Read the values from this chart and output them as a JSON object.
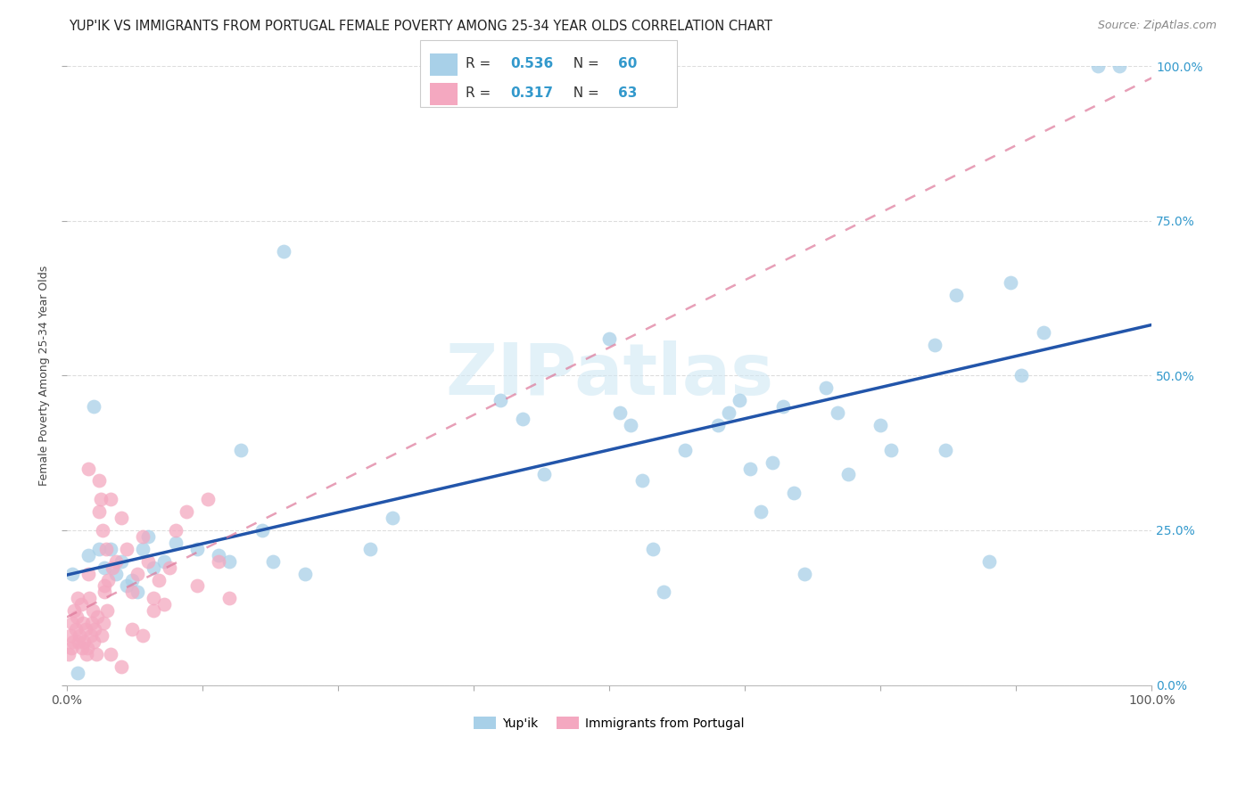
{
  "title": "YUP'IK VS IMMIGRANTS FROM PORTUGAL FEMALE POVERTY AMONG 25-34 YEAR OLDS CORRELATION CHART",
  "source": "Source: ZipAtlas.com",
  "ylabel": "Female Poverty Among 25-34 Year Olds",
  "legend1_label": "Yup'ik",
  "legend2_label": "Immigrants from Portugal",
  "R1": 0.536,
  "N1": 60,
  "R2": 0.317,
  "N2": 63,
  "color_blue": "#a8d0e8",
  "color_pink": "#f4a8c0",
  "color_blue_text": "#3399cc",
  "line_blue": "#2255aa",
  "line_pink": "#dd7799",
  "watermark_color": "#d0e8f4",
  "background_color": "#ffffff",
  "grid_color": "#dddddd",
  "yupik_points": [
    [
      0.5,
      18.0
    ],
    [
      1.0,
      2.0
    ],
    [
      2.0,
      21.0
    ],
    [
      2.5,
      45.0
    ],
    [
      3.0,
      22.0
    ],
    [
      3.5,
      19.0
    ],
    [
      4.0,
      22.0
    ],
    [
      4.5,
      18.0
    ],
    [
      5.0,
      20.0
    ],
    [
      5.5,
      16.0
    ],
    [
      6.0,
      17.0
    ],
    [
      6.5,
      15.0
    ],
    [
      7.0,
      22.0
    ],
    [
      7.5,
      24.0
    ],
    [
      8.0,
      19.0
    ],
    [
      9.0,
      20.0
    ],
    [
      10.0,
      23.0
    ],
    [
      12.0,
      22.0
    ],
    [
      14.0,
      21.0
    ],
    [
      15.0,
      20.0
    ],
    [
      16.0,
      38.0
    ],
    [
      18.0,
      25.0
    ],
    [
      19.0,
      20.0
    ],
    [
      20.0,
      70.0
    ],
    [
      22.0,
      18.0
    ],
    [
      28.0,
      22.0
    ],
    [
      30.0,
      27.0
    ],
    [
      40.0,
      46.0
    ],
    [
      42.0,
      43.0
    ],
    [
      44.0,
      34.0
    ],
    [
      50.0,
      56.0
    ],
    [
      51.0,
      44.0
    ],
    [
      52.0,
      42.0
    ],
    [
      53.0,
      33.0
    ],
    [
      54.0,
      22.0
    ],
    [
      55.0,
      15.0
    ],
    [
      57.0,
      38.0
    ],
    [
      60.0,
      42.0
    ],
    [
      61.0,
      44.0
    ],
    [
      62.0,
      46.0
    ],
    [
      63.0,
      35.0
    ],
    [
      64.0,
      28.0
    ],
    [
      65.0,
      36.0
    ],
    [
      66.0,
      45.0
    ],
    [
      67.0,
      31.0
    ],
    [
      68.0,
      18.0
    ],
    [
      70.0,
      48.0
    ],
    [
      71.0,
      44.0
    ],
    [
      72.0,
      34.0
    ],
    [
      75.0,
      42.0
    ],
    [
      76.0,
      38.0
    ],
    [
      80.0,
      55.0
    ],
    [
      81.0,
      38.0
    ],
    [
      82.0,
      63.0
    ],
    [
      85.0,
      20.0
    ],
    [
      87.0,
      65.0
    ],
    [
      88.0,
      50.0
    ],
    [
      90.0,
      57.0
    ],
    [
      95.0,
      100.0
    ],
    [
      97.0,
      100.0
    ]
  ],
  "portugal_points": [
    [
      0.2,
      5.0
    ],
    [
      0.3,
      8.0
    ],
    [
      0.4,
      6.0
    ],
    [
      0.5,
      10.0
    ],
    [
      0.6,
      7.0
    ],
    [
      0.7,
      12.0
    ],
    [
      0.8,
      9.0
    ],
    [
      0.9,
      11.0
    ],
    [
      1.0,
      14.0
    ],
    [
      1.1,
      7.0
    ],
    [
      1.2,
      8.0
    ],
    [
      1.3,
      13.0
    ],
    [
      1.4,
      6.0
    ],
    [
      1.5,
      10.0
    ],
    [
      1.6,
      7.0
    ],
    [
      1.7,
      9.0
    ],
    [
      1.8,
      5.0
    ],
    [
      1.9,
      6.0
    ],
    [
      2.0,
      18.0
    ],
    [
      2.1,
      14.0
    ],
    [
      2.2,
      8.0
    ],
    [
      2.3,
      10.0
    ],
    [
      2.4,
      12.0
    ],
    [
      2.5,
      7.0
    ],
    [
      2.6,
      9.0
    ],
    [
      2.7,
      5.0
    ],
    [
      2.8,
      11.0
    ],
    [
      3.0,
      33.0
    ],
    [
      3.1,
      30.0
    ],
    [
      3.2,
      8.0
    ],
    [
      3.3,
      25.0
    ],
    [
      3.4,
      10.0
    ],
    [
      3.5,
      15.0
    ],
    [
      3.6,
      22.0
    ],
    [
      3.7,
      12.0
    ],
    [
      3.8,
      17.0
    ],
    [
      4.0,
      30.0
    ],
    [
      4.2,
      19.0
    ],
    [
      4.5,
      20.0
    ],
    [
      5.0,
      27.0
    ],
    [
      5.5,
      22.0
    ],
    [
      6.0,
      15.0
    ],
    [
      6.5,
      18.0
    ],
    [
      7.0,
      24.0
    ],
    [
      7.5,
      20.0
    ],
    [
      8.0,
      14.0
    ],
    [
      8.5,
      17.0
    ],
    [
      9.0,
      13.0
    ],
    [
      9.5,
      19.0
    ],
    [
      10.0,
      25.0
    ],
    [
      11.0,
      28.0
    ],
    [
      12.0,
      16.0
    ],
    [
      13.0,
      30.0
    ],
    [
      14.0,
      20.0
    ],
    [
      15.0,
      14.0
    ],
    [
      2.0,
      35.0
    ],
    [
      3.0,
      28.0
    ],
    [
      4.0,
      5.0
    ],
    [
      5.0,
      3.0
    ],
    [
      6.0,
      9.0
    ],
    [
      7.0,
      8.0
    ],
    [
      8.0,
      12.0
    ],
    [
      3.5,
      16.0
    ]
  ]
}
